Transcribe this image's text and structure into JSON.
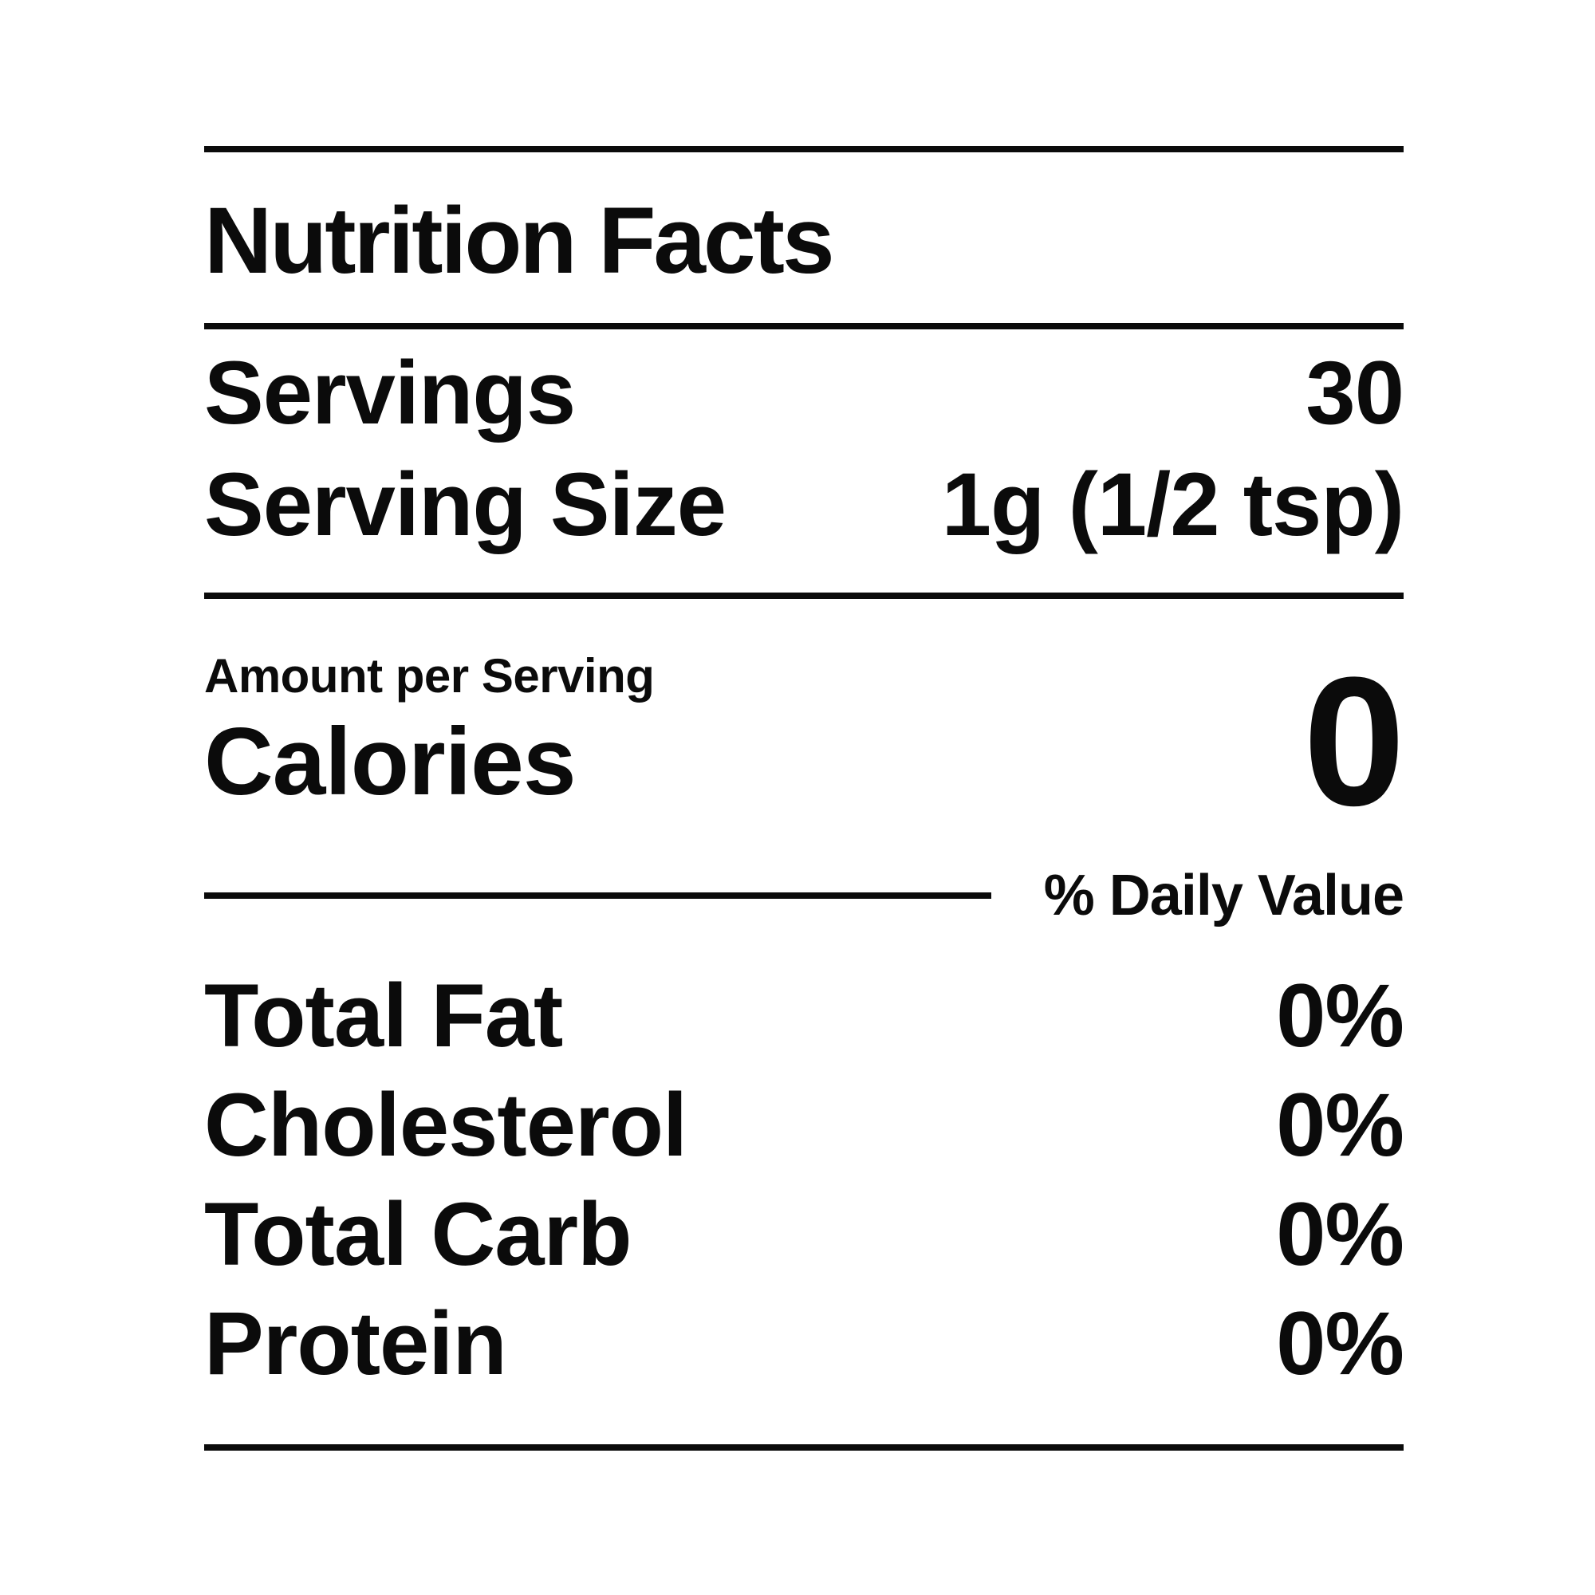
{
  "label": {
    "title": "Nutrition Facts",
    "servings": {
      "label": "Servings",
      "value": "30"
    },
    "serving_size": {
      "label": "Serving Size",
      "value": "1g (1/2 tsp)"
    },
    "amount_per_serving": "Amount per Serving",
    "calories": {
      "label": "Calories",
      "value": "0"
    },
    "daily_value_header": "% Daily Value",
    "nutrients": [
      {
        "label": "Total Fat",
        "value": "0%"
      },
      {
        "label": "Cholesterol",
        "value": "0%"
      },
      {
        "label": "Total Carb",
        "value": "0%"
      },
      {
        "label": "Protein",
        "value": "0%"
      }
    ],
    "colors": {
      "text": "#0b0b0b",
      "background": "#ffffff",
      "rule": "#0b0b0b"
    }
  }
}
